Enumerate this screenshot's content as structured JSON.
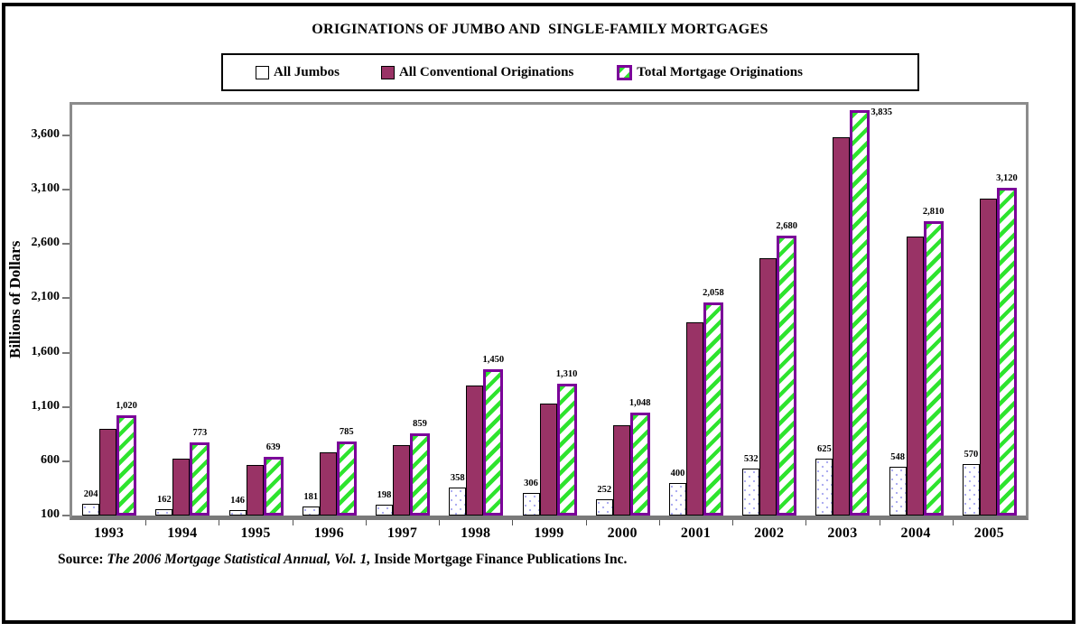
{
  "title": "ORIGINATIONS OF JUMBO AND  SINGLE-FAMILY MORTGAGES",
  "chart_data": {
    "type": "bar",
    "title": "ORIGINATIONS OF JUMBO AND  SINGLE-FAMILY MORTGAGES",
    "xlabel": "",
    "ylabel": "Billions of Dollars",
    "categories": [
      "1993",
      "1994",
      "1995",
      "1996",
      "1997",
      "1998",
      "1999",
      "2000",
      "2001",
      "2002",
      "2003",
      "2004",
      "2005"
    ],
    "series": [
      {
        "name": "All Jumbos",
        "values": [
          204,
          162,
          146,
          181,
          198,
          358,
          306,
          252,
          400,
          532,
          625,
          548,
          570
        ],
        "labels": [
          "204",
          "162",
          "146",
          "181",
          "198",
          "358",
          "306",
          "252",
          "400",
          "532",
          "625",
          "548",
          "570"
        ],
        "show_labels": true
      },
      {
        "name": "All Conventional Originations",
        "values": [
          895,
          620,
          565,
          680,
          745,
          1295,
          1130,
          930,
          1875,
          2470,
          3585,
          2665,
          3020
        ],
        "labels": [],
        "show_labels": false,
        "note": "values estimated from bar heights; no data labels printed on chart"
      },
      {
        "name": "Total Mortgage Originations",
        "values": [
          1020,
          773,
          639,
          785,
          859,
          1450,
          1310,
          1048,
          2058,
          2680,
          3835,
          2810,
          3120
        ],
        "labels": [
          "1,020",
          "773",
          "639",
          "785",
          "859",
          "1,450",
          "1,310",
          "1,048",
          "2,058",
          "2,680",
          "3,835",
          "2,810",
          "3,120"
        ],
        "show_labels": true
      }
    ],
    "ylim": [
      100,
      3882
    ],
    "yticks": [
      100,
      600,
      1100,
      1600,
      2100,
      2600,
      3100,
      3600
    ],
    "ytick_labels": [
      "100",
      "600",
      "1,100",
      "1,600",
      "2,100",
      "2,600",
      "3,100",
      "3,600"
    ],
    "grid": false,
    "legend_position": "top"
  },
  "source": {
    "prefix": "Source:  ",
    "italic": "The 2006 Mortgage Statistical Annual, Vol. 1,",
    "rest": " Inside Mortgage Finance Publications Inc."
  },
  "colors": {
    "jumbo_fill": "#FFFFFF",
    "jumbo_dot": "#A9A9F0",
    "jumbo_border": "#000000",
    "conventional_fill": "#993366",
    "conventional_border": "#000000",
    "total_fill": "#FFFFFF",
    "total_hatch_green": "#2EE32E",
    "total_border_purple": "#7B0099",
    "plot_frame_gray": "#8C8C8C",
    "axis_line_gray": "#7A7A7A",
    "text": "#000000"
  }
}
